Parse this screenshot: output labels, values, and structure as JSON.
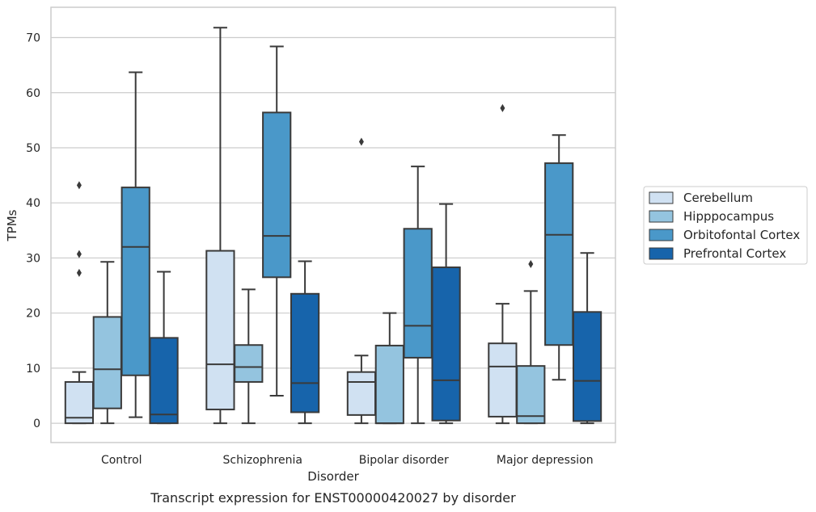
{
  "chart_data": {
    "type": "boxplot",
    "caption": "Transcript expression for ENST00000420027 by disorder",
    "xlabel": "Disorder",
    "ylabel": "TPMs",
    "ylim": [
      -3.5,
      75.5
    ],
    "yticks": [
      0,
      10,
      20,
      30,
      40,
      50,
      60,
      70
    ],
    "grid": true,
    "legend_position": "right",
    "categories": [
      "Control",
      "Schizophrenia",
      "Bipolar disorder",
      "Major depression"
    ],
    "series": [
      {
        "name": "Cerebellum",
        "color": "#d0e1f2",
        "boxes": [
          {
            "whislo": 0,
            "q1": 0,
            "median": 1,
            "q3": 7.5,
            "whishi": 9.3,
            "fliers": [
              27.3,
              30.7,
              43.2
            ]
          },
          {
            "whislo": 0,
            "q1": 2.5,
            "median": 10.7,
            "q3": 31.3,
            "whishi": 71.8,
            "fliers": []
          },
          {
            "whislo": 0,
            "q1": 1.5,
            "median": 7.5,
            "q3": 9.3,
            "whishi": 12.3,
            "fliers": [
              51.1
            ]
          },
          {
            "whislo": 0,
            "q1": 1.2,
            "median": 10.3,
            "q3": 14.5,
            "whishi": 21.7,
            "fliers": [
              57.2
            ]
          }
        ]
      },
      {
        "name": "Hipppocampus",
        "color": "#94c4df",
        "boxes": [
          {
            "whislo": 0,
            "q1": 2.7,
            "median": 9.8,
            "q3": 19.3,
            "whishi": 29.3,
            "fliers": []
          },
          {
            "whislo": 0,
            "q1": 7.5,
            "median": 10.2,
            "q3": 14.2,
            "whishi": 24.3,
            "fliers": []
          },
          {
            "whislo": 0,
            "q1": 0,
            "median": 0,
            "q3": 14.1,
            "whishi": 20,
            "fliers": []
          },
          {
            "whislo": 0,
            "q1": 0,
            "median": 1.3,
            "q3": 10.4,
            "whishi": 24,
            "fliers": [
              28.9
            ]
          }
        ]
      },
      {
        "name": "Orbitofontal Cortex",
        "color": "#4a98c9",
        "boxes": [
          {
            "whislo": 1.1,
            "q1": 8.7,
            "median": 32,
            "q3": 42.8,
            "whishi": 63.7,
            "fliers": []
          },
          {
            "whislo": 5,
            "q1": 26.5,
            "median": 34,
            "q3": 56.4,
            "whishi": 68.4,
            "fliers": []
          },
          {
            "whislo": 0,
            "q1": 11.9,
            "median": 17.7,
            "q3": 35.3,
            "whishi": 46.6,
            "fliers": []
          },
          {
            "whislo": 7.9,
            "q1": 14.2,
            "median": 34.2,
            "q3": 47.2,
            "whishi": 52.3,
            "fliers": []
          }
        ]
      },
      {
        "name": "Prefrontal Cortex",
        "color": "#1764ab",
        "boxes": [
          {
            "whislo": 0,
            "q1": 0,
            "median": 1.6,
            "q3": 15.5,
            "whishi": 27.5,
            "fliers": []
          },
          {
            "whislo": 0,
            "q1": 2,
            "median": 7.3,
            "q3": 23.5,
            "whishi": 29.4,
            "fliers": []
          },
          {
            "whislo": 0,
            "q1": 0.5,
            "median": 7.8,
            "q3": 28.3,
            "whishi": 39.8,
            "fliers": []
          },
          {
            "whislo": 0,
            "q1": 0.4,
            "median": 7.7,
            "q3": 20.2,
            "whishi": 30.9,
            "fliers": []
          }
        ]
      }
    ]
  }
}
